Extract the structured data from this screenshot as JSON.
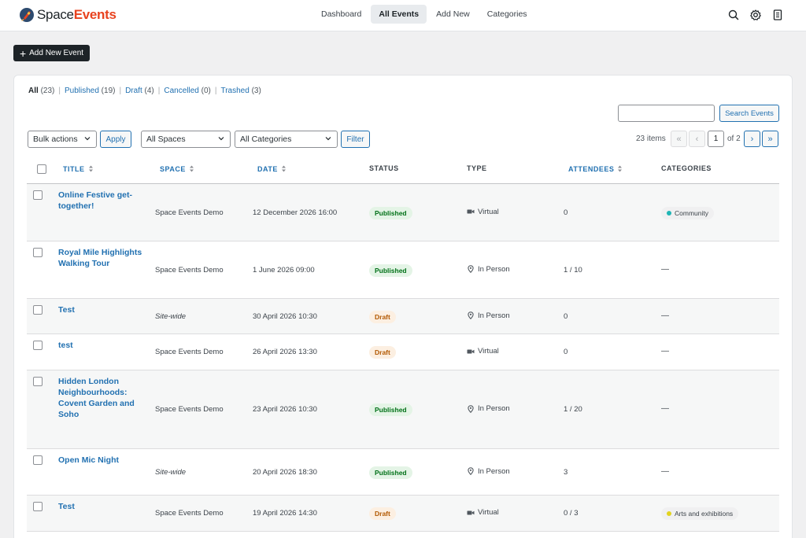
{
  "brand": {
    "name_part1": "Space",
    "name_part2": "Events"
  },
  "nav": [
    {
      "label": "Dashboard",
      "active": false
    },
    {
      "label": "All Events",
      "active": true
    },
    {
      "label": "Add New",
      "active": false
    },
    {
      "label": "Categories",
      "active": false
    }
  ],
  "top_icons": [
    "search-icon",
    "gear-icon",
    "document-icon"
  ],
  "add_button": "Add New Event",
  "views": [
    {
      "label": "All",
      "count": "(23)",
      "current": true
    },
    {
      "label": "Published",
      "count": "(19)",
      "current": false
    },
    {
      "label": "Draft",
      "count": "(4)",
      "current": false
    },
    {
      "label": "Cancelled",
      "count": "(0)",
      "current": false
    },
    {
      "label": "Trashed",
      "count": "(3)",
      "current": false
    }
  ],
  "search": {
    "value": "",
    "button": "Search Events"
  },
  "filters": {
    "bulk": "Bulk actions",
    "apply": "Apply",
    "spaces": "All Spaces",
    "categories": "All Categories",
    "filter": "Filter"
  },
  "pagination": {
    "items": "23 items",
    "first": "«",
    "prev": "‹",
    "current": "1",
    "of": "of 2",
    "next": "›",
    "last": "»"
  },
  "columns": {
    "title": "TITLE",
    "space": "SPACE",
    "date": "DATE",
    "status": "STATUS",
    "type": "TYPE",
    "attendees": "ATTENDEES",
    "categories": "CATEGORIES"
  },
  "rows": [
    {
      "title": "Online Festive get-together!",
      "space": "Space Events Demo",
      "space_italic": false,
      "date": "12 December 2026 16:00",
      "status": "Published",
      "type": "Virtual",
      "attendees": "0",
      "category": "Community",
      "category_color": "#1fb5b5"
    },
    {
      "title": "Royal Mile Highlights Walking Tour",
      "space": "Space Events Demo",
      "space_italic": false,
      "date": "1 June 2026 09:00",
      "status": "Published",
      "type": "In Person",
      "attendees": "1 / 10",
      "category": "—",
      "category_color": ""
    },
    {
      "title": "Test",
      "space": "Site-wide",
      "space_italic": true,
      "date": "30 April 2026 10:30",
      "status": "Draft",
      "type": "In Person",
      "attendees": "0",
      "category": "—",
      "category_color": ""
    },
    {
      "title": "test",
      "space": "Space Events Demo",
      "space_italic": false,
      "date": "26 April 2026 13:30",
      "status": "Draft",
      "type": "Virtual",
      "attendees": "0",
      "category": "—",
      "category_color": ""
    },
    {
      "title": "Hidden London Neighbourhoods: Covent Garden and Soho",
      "space": "Space Events Demo",
      "space_italic": false,
      "date": "23 April 2026 10:30",
      "status": "Published",
      "type": "In Person",
      "attendees": "1 / 20",
      "category": "—",
      "category_color": ""
    },
    {
      "title": "Open Mic Night",
      "space": "Site-wide",
      "space_italic": true,
      "date": "20 April 2026 18:30",
      "status": "Published",
      "type": "In Person",
      "attendees": "3",
      "category": "—",
      "category_color": ""
    },
    {
      "title": "Test",
      "space": "Space Events Demo",
      "space_italic": false,
      "date": "19 April 2026 14:30",
      "status": "Draft",
      "type": "Virtual",
      "attendees": "0 / 3",
      "category": "Arts and exhibitions",
      "category_color": "#e2d31f"
    }
  ]
}
